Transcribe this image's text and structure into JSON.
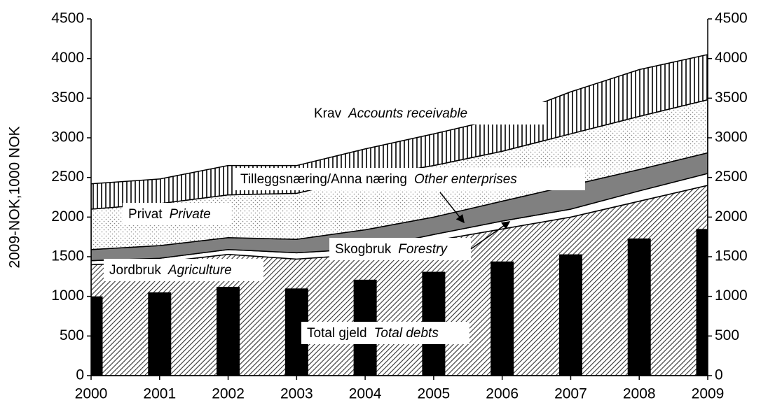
{
  "chart_data": {
    "type": "stacked-area-bar",
    "y_label": "2009-NOK,1000 NOK",
    "x": [
      2000,
      2001,
      2002,
      2003,
      2004,
      2005,
      2006,
      2007,
      2008,
      2009
    ],
    "xlim": [
      2000,
      2009
    ],
    "xticks": [
      2000,
      2001,
      2002,
      2003,
      2004,
      2005,
      2006,
      2007,
      2008,
      2009
    ],
    "ylim": [
      0,
      4500
    ],
    "yticks": [
      0,
      500,
      1000,
      1500,
      2000,
      2500,
      3000,
      3500,
      4000,
      4500
    ],
    "y2lim": [
      0,
      4500
    ],
    "y2ticks": [
      0,
      500,
      1000,
      1500,
      2000,
      2500,
      3000,
      3500,
      4000,
      4500
    ],
    "series": [
      {
        "name": "Jordbruk",
        "name_en": "Agriculture",
        "kind": "area",
        "color": "hatch",
        "values": [
          1400,
          1430,
          1530,
          1470,
          1530,
          1700,
          1850,
          2000,
          2200,
          2400
        ]
      },
      {
        "name": "Skogbruk",
        "name_en": "Forestry",
        "kind": "area",
        "color": "#ffffff",
        "values": [
          50,
          50,
          60,
          80,
          70,
          80,
          100,
          100,
          130,
          150
        ]
      },
      {
        "name": "Tilleggsnæring/Anna næring",
        "name_en": "Other enterprises",
        "kind": "area",
        "color": "#808080",
        "values": [
          140,
          160,
          150,
          170,
          240,
          220,
          250,
          300,
          270,
          260
        ]
      },
      {
        "name": "Privat",
        "name_en": "Private",
        "kind": "area",
        "color": "dots",
        "values": [
          510,
          530,
          540,
          580,
          660,
          650,
          630,
          650,
          670,
          670
        ]
      },
      {
        "name": "Krav",
        "name_en": "Accounts receivable",
        "kind": "area",
        "color": "stripes",
        "values": [
          320,
          310,
          370,
          350,
          360,
          400,
          420,
          530,
          590,
          570
        ]
      },
      {
        "name": "Total gjeld",
        "name_en": "Total debts",
        "kind": "bar",
        "color": "#000000",
        "values": [
          1000,
          1050,
          1120,
          1100,
          1210,
          1310,
          1440,
          1530,
          1730,
          1850
        ]
      }
    ]
  }
}
